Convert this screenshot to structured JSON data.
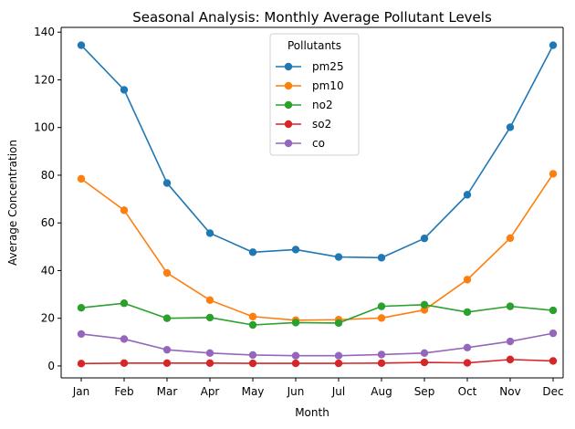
{
  "chart_data": {
    "type": "line",
    "title": "Seasonal Analysis: Monthly Average Pollutant Levels",
    "xlabel": "Month",
    "ylabel": "Average Concentration",
    "categories": [
      "Jan",
      "Feb",
      "Mar",
      "Apr",
      "May",
      "Jun",
      "Jul",
      "Aug",
      "Sep",
      "Oct",
      "Nov",
      "Dec"
    ],
    "ylim": [
      -5,
      142
    ],
    "yticks": [
      0,
      20,
      40,
      60,
      80,
      100,
      120,
      140
    ],
    "grid": false,
    "legend": {
      "title": "Pollutants",
      "placement": "upper center"
    },
    "series": [
      {
        "name": "pm25",
        "color": "#1f77b4",
        "values": [
          134.5,
          115.8,
          76.7,
          55.7,
          47.7,
          48.8,
          45.7,
          45.4,
          53.5,
          71.8,
          100.1,
          134.5
        ]
      },
      {
        "name": "pm10",
        "color": "#ff7f0e",
        "values": [
          78.5,
          65.3,
          39.0,
          27.6,
          20.7,
          19.2,
          19.4,
          20.1,
          23.5,
          36.2,
          53.6,
          80.6
        ]
      },
      {
        "name": "no2",
        "color": "#2ca02c",
        "values": [
          24.4,
          26.3,
          20.0,
          20.3,
          17.2,
          18.2,
          18.0,
          25.0,
          25.7,
          22.6,
          25.0,
          23.3
        ]
      },
      {
        "name": "so2",
        "color": "#d62728",
        "values": [
          1.0,
          1.2,
          1.2,
          1.2,
          1.1,
          1.1,
          1.1,
          1.2,
          1.5,
          1.3,
          2.7,
          2.1
        ]
      },
      {
        "name": "co",
        "color": "#9467bd",
        "values": [
          13.4,
          11.3,
          6.8,
          5.4,
          4.6,
          4.3,
          4.3,
          4.8,
          5.4,
          7.7,
          10.3,
          13.7
        ]
      }
    ]
  }
}
